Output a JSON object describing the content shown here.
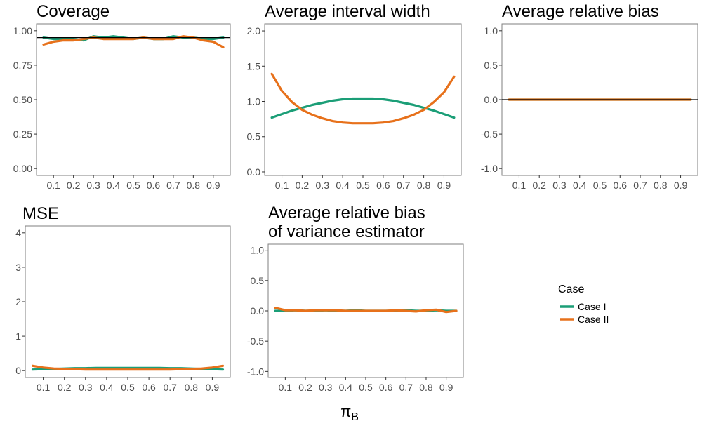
{
  "figure": {
    "x_axis_label": "π",
    "x_axis_subscript": "B",
    "legend": {
      "title": "Case",
      "position": "right",
      "entries": [
        {
          "label": "Case I",
          "color": "#1b9e77"
        },
        {
          "label": "Case II",
          "color": "#e7711b"
        }
      ]
    }
  },
  "chart_data": [
    {
      "type": "line",
      "title": [
        "Coverage"
      ],
      "xlabel": "π_B",
      "ylabel": "",
      "x": [
        0.05,
        0.1,
        0.15,
        0.2,
        0.25,
        0.3,
        0.35,
        0.4,
        0.45,
        0.5,
        0.55,
        0.6,
        0.65,
        0.7,
        0.75,
        0.8,
        0.85,
        0.9,
        0.95
      ],
      "xticks": [
        0.1,
        0.2,
        0.3,
        0.4,
        0.5,
        0.6,
        0.7,
        0.8,
        0.9
      ],
      "xticklabels": [
        "0.1",
        "0.2",
        "0.3",
        "0.4",
        "0.5",
        "0.6",
        "0.7",
        "0.8",
        "0.9"
      ],
      "ylim": [
        -0.05,
        1.05
      ],
      "yticks": [
        0,
        0.25,
        0.5,
        0.75,
        1.0
      ],
      "yticklabels": [
        "0.00",
        "0.25",
        "0.50",
        "0.75",
        "1.00"
      ],
      "reference_line": 0.95,
      "series": [
        {
          "name": "Case I",
          "values": [
            0.95,
            0.94,
            0.94,
            0.94,
            0.93,
            0.96,
            0.95,
            0.96,
            0.95,
            0.94,
            0.95,
            0.94,
            0.94,
            0.96,
            0.95,
            0.95,
            0.94,
            0.94,
            0.95
          ]
        },
        {
          "name": "Case II",
          "values": [
            0.9,
            0.92,
            0.93,
            0.93,
            0.94,
            0.95,
            0.94,
            0.94,
            0.94,
            0.94,
            0.95,
            0.94,
            0.94,
            0.94,
            0.96,
            0.95,
            0.93,
            0.92,
            0.88
          ]
        }
      ]
    },
    {
      "type": "line",
      "title": [
        "Average interval width"
      ],
      "xlabel": "π_B",
      "ylabel": "",
      "x": [
        0.05,
        0.1,
        0.15,
        0.2,
        0.25,
        0.3,
        0.35,
        0.4,
        0.45,
        0.5,
        0.55,
        0.6,
        0.65,
        0.7,
        0.75,
        0.8,
        0.85,
        0.9,
        0.95
      ],
      "xticks": [
        0.1,
        0.2,
        0.3,
        0.4,
        0.5,
        0.6,
        0.7,
        0.8,
        0.9
      ],
      "xticklabels": [
        "0.1",
        "0.2",
        "0.3",
        "0.4",
        "0.5",
        "0.6",
        "0.7",
        "0.8",
        "0.9"
      ],
      "ylim": [
        -0.05,
        2.1
      ],
      "yticks": [
        0,
        0.5,
        1.0,
        1.5,
        2.0
      ],
      "yticklabels": [
        "0.0",
        "0.5",
        "1.0",
        "1.5",
        "2.0"
      ],
      "reference_line": null,
      "series": [
        {
          "name": "Case I",
          "values": [
            0.77,
            0.82,
            0.87,
            0.91,
            0.95,
            0.98,
            1.01,
            1.03,
            1.04,
            1.04,
            1.04,
            1.03,
            1.01,
            0.98,
            0.95,
            0.91,
            0.87,
            0.82,
            0.77
          ]
        },
        {
          "name": "Case II",
          "values": [
            1.39,
            1.15,
            0.99,
            0.88,
            0.81,
            0.76,
            0.72,
            0.7,
            0.69,
            0.69,
            0.69,
            0.7,
            0.72,
            0.76,
            0.81,
            0.88,
            0.99,
            1.13,
            1.35
          ]
        }
      ]
    },
    {
      "type": "line",
      "title": [
        "Average relative bias"
      ],
      "xlabel": "π_B",
      "ylabel": "",
      "x": [
        0.05,
        0.1,
        0.15,
        0.2,
        0.25,
        0.3,
        0.35,
        0.4,
        0.45,
        0.5,
        0.55,
        0.6,
        0.65,
        0.7,
        0.75,
        0.8,
        0.85,
        0.9,
        0.95
      ],
      "xticks": [
        0.1,
        0.2,
        0.3,
        0.4,
        0.5,
        0.6,
        0.7,
        0.8,
        0.9
      ],
      "xticklabels": [
        "0.1",
        "0.2",
        "0.3",
        "0.4",
        "0.5",
        "0.6",
        "0.7",
        "0.8",
        "0.9"
      ],
      "ylim": [
        -1.1,
        1.1
      ],
      "yticks": [
        -1.0,
        -0.5,
        0,
        0.5,
        1.0
      ],
      "yticklabels": [
        "-1.0",
        "-0.5",
        "0.0",
        "0.5",
        "1.0"
      ],
      "reference_line": 0,
      "series": [
        {
          "name": "Case I",
          "values": [
            0,
            0,
            0,
            0,
            0,
            0,
            0,
            0,
            0,
            0,
            0,
            0,
            0,
            0,
            0,
            0,
            0,
            0,
            0
          ]
        },
        {
          "name": "Case II",
          "values": [
            0,
            0,
            0,
            0,
            0,
            0,
            0,
            0,
            0,
            0,
            0,
            0,
            0,
            0,
            0,
            0,
            0,
            0,
            0
          ]
        }
      ]
    },
    {
      "type": "line",
      "title": [
        "MSE"
      ],
      "xlabel": "π_B",
      "ylabel": "",
      "x": [
        0.05,
        0.1,
        0.15,
        0.2,
        0.25,
        0.3,
        0.35,
        0.4,
        0.45,
        0.5,
        0.55,
        0.6,
        0.65,
        0.7,
        0.75,
        0.8,
        0.85,
        0.9,
        0.95
      ],
      "xticks": [
        0.1,
        0.2,
        0.3,
        0.4,
        0.5,
        0.6,
        0.7,
        0.8,
        0.9
      ],
      "xticklabels": [
        "0.1",
        "0.2",
        "0.3",
        "0.4",
        "0.5",
        "0.6",
        "0.7",
        "0.8",
        "0.9"
      ],
      "ylim": [
        -0.2,
        4.2
      ],
      "yticks": [
        0,
        1,
        2,
        3,
        4
      ],
      "yticklabels": [
        "0",
        "1",
        "2",
        "3",
        "4"
      ],
      "reference_line": null,
      "series": [
        {
          "name": "Case I",
          "values": [
            0.03,
            0.04,
            0.05,
            0.06,
            0.07,
            0.07,
            0.08,
            0.08,
            0.08,
            0.08,
            0.08,
            0.08,
            0.08,
            0.07,
            0.07,
            0.06,
            0.05,
            0.04,
            0.03
          ]
        },
        {
          "name": "Case II",
          "values": [
            0.14,
            0.09,
            0.06,
            0.05,
            0.04,
            0.03,
            0.03,
            0.03,
            0.03,
            0.03,
            0.03,
            0.03,
            0.03,
            0.03,
            0.04,
            0.05,
            0.06,
            0.09,
            0.14
          ]
        }
      ]
    },
    {
      "type": "line",
      "title": [
        "Average relative bias",
        "of variance estimator"
      ],
      "xlabel": "π_B",
      "ylabel": "",
      "x": [
        0.05,
        0.1,
        0.15,
        0.2,
        0.25,
        0.3,
        0.35,
        0.4,
        0.45,
        0.5,
        0.55,
        0.6,
        0.65,
        0.7,
        0.75,
        0.8,
        0.85,
        0.9,
        0.95
      ],
      "xticks": [
        0.1,
        0.2,
        0.3,
        0.4,
        0.5,
        0.6,
        0.7,
        0.8,
        0.9
      ],
      "xticklabels": [
        "0.1",
        "0.2",
        "0.3",
        "0.4",
        "0.5",
        "0.6",
        "0.7",
        "0.8",
        "0.9"
      ],
      "ylim": [
        -1.1,
        1.1
      ],
      "yticks": [
        -1.0,
        -0.5,
        0,
        0.5,
        1.0
      ],
      "yticklabels": [
        "-1.0",
        "-0.5",
        "0.0",
        "0.5",
        "1.0"
      ],
      "reference_line": null,
      "series": [
        {
          "name": "Case I",
          "values": [
            0.0,
            0.0,
            0.01,
            0.0,
            0.0,
            0.01,
            0.0,
            0.0,
            0.01,
            0.0,
            0.0,
            0.0,
            0.0,
            0.01,
            0.0,
            0.0,
            0.01,
            0.0,
            0.0
          ]
        },
        {
          "name": "Case II",
          "values": [
            0.05,
            0.01,
            0.01,
            0.0,
            0.01,
            0.01,
            0.01,
            0.0,
            0.0,
            0.0,
            0.0,
            0.0,
            0.01,
            0.0,
            -0.01,
            0.01,
            0.02,
            -0.02,
            0.0
          ]
        }
      ]
    }
  ]
}
